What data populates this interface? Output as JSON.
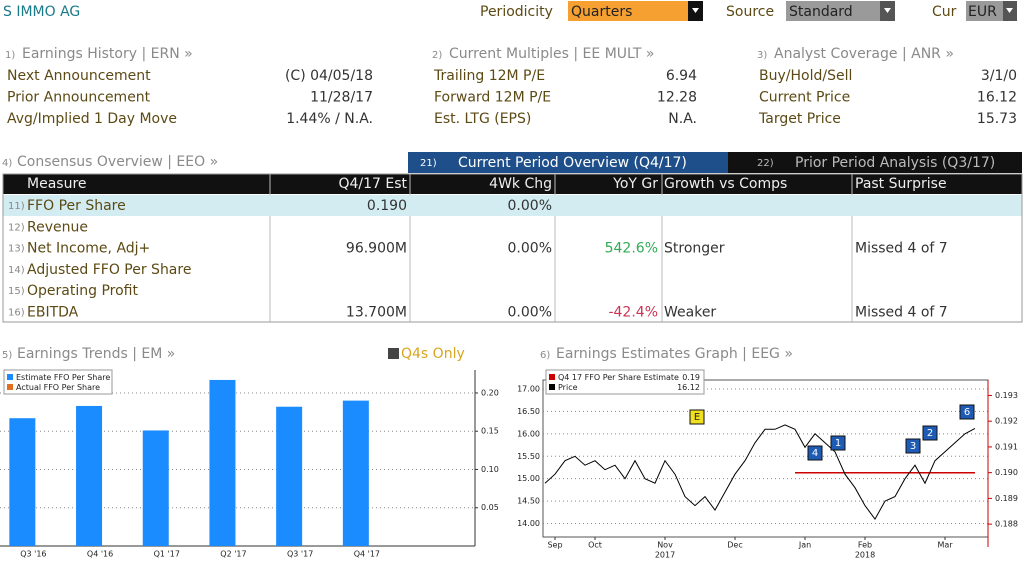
{
  "header": {
    "title": "S IMMO AG",
    "periodicity_label": "Periodicity",
    "periodicity": "Quarters",
    "source_label": "Source",
    "source": "Standard",
    "cur_label": "Cur",
    "cur": "EUR"
  },
  "panels": [
    {
      "number": "1)",
      "title": "Earnings History | ERN »",
      "rows": [
        [
          "Next Announcement",
          "(C)  04/05/18"
        ],
        [
          "Prior Announcement",
          "11/28/17"
        ],
        [
          "Avg/Implied 1 Day Move",
          "1.44% / N.A."
        ]
      ]
    },
    {
      "number": "2)",
      "title": "Current Multiples | EE MULT »",
      "rows": [
        [
          "Trailing 12M P/E",
          "6.94"
        ],
        [
          "Forward 12M P/E",
          "12.28"
        ],
        [
          "Est. LTG (EPS)",
          "N.A."
        ]
      ]
    },
    {
      "number": "3)",
      "title": "Analyst Coverage | ANR »",
      "rows": [
        [
          "Buy/Hold/Sell",
          "3/1/0"
        ],
        [
          "Current Price",
          "16.12"
        ],
        [
          "Target Price",
          "15.73"
        ]
      ]
    }
  ],
  "consensus": {
    "number": "4)",
    "title": "Consensus Overview | EEO »",
    "tabs": [
      {
        "number": "21)",
        "label": "Current Period Overview (Q4/17)"
      },
      {
        "number": "22)",
        "label": "Prior Period Analysis (Q3/17)"
      }
    ],
    "columns": [
      "Measure",
      "Q4/17 Est",
      "4Wk Chg",
      "YoY Gr",
      "Growth vs Comps",
      "Past Surprise"
    ],
    "rows": [
      [
        "11)",
        "FFO Per Share",
        "0.190",
        "0.00%",
        null,
        null,
        null
      ],
      [
        "12)",
        "Revenue",
        null,
        null,
        null,
        null,
        null
      ],
      [
        "13)",
        "Net Income, Adj+",
        "96.900M",
        "0.00%",
        "542.6%",
        "Stronger",
        "Missed 4 of 7"
      ],
      [
        "14)",
        "Adjusted FFO Per Share",
        null,
        null,
        null,
        null,
        null
      ],
      [
        "15)",
        "Operating Profit",
        null,
        null,
        null,
        null,
        null
      ],
      [
        "16)",
        "EBITDA",
        "13.700M",
        "0.00%",
        "-42.4%",
        "Weaker",
        "Missed 4 of 7"
      ]
    ]
  },
  "chart_data": [
    {
      "type": "bar",
      "panel_number": "5)",
      "title": "Earnings Trends | EM »",
      "toggle_label": "Q4s Only",
      "categories": [
        "Q3 '16",
        "Q4 '16",
        "Q1 '17",
        "Q2 '17",
        "Q3 '17",
        "Q4 '17"
      ],
      "series": [
        {
          "name": "Estimate FFO Per Share",
          "color": "#1a8cff",
          "values": [
            0.167,
            0.183,
            0.151,
            0.217,
            0.182,
            0.19
          ]
        },
        {
          "name": "Actual FFO Per Share",
          "color": "#e07020",
          "values": [
            null,
            null,
            null,
            null,
            null,
            null
          ]
        }
      ],
      "ylim": [
        0,
        0.23
      ],
      "yticks": [
        {
          "value": 0.05,
          "label": "0.05"
        },
        {
          "value": 0.1,
          "label": "0.10"
        },
        {
          "value": 0.15,
          "label": "0.15"
        },
        {
          "value": 0.2,
          "label": "0.20"
        }
      ],
      "grid": true,
      "legend": "top-left"
    },
    {
      "type": "line",
      "panel_number": "6)",
      "title": "Earnings Estimates Graph | EEG »",
      "categories": [
        null,
        "Sep",
        null,
        null,
        null,
        "Oct",
        null,
        null,
        null,
        null,
        null,
        null,
        "Nov",
        null,
        null,
        null,
        null,
        null,
        null,
        "Dec",
        null,
        null,
        null,
        null,
        null,
        null,
        "Jan",
        null,
        null,
        null,
        null,
        null,
        "Feb",
        null,
        null,
        null,
        null,
        null,
        null,
        null,
        "Mar",
        null,
        null,
        null
      ],
      "year_categories": [
        null,
        null,
        null,
        null,
        null,
        null,
        null,
        null,
        null,
        null,
        null,
        null,
        "2017",
        null,
        null,
        null,
        null,
        null,
        null,
        null,
        null,
        null,
        null,
        null,
        null,
        null,
        null,
        null,
        null,
        null,
        null,
        null,
        "2018",
        null,
        null,
        null,
        null,
        null,
        null,
        null,
        null,
        null,
        null,
        null
      ],
      "series": [
        {
          "name": "Q4 17 FFO Per Share Estimate",
          "legend_value": 0.19,
          "color": "#cc0000",
          "axis": "y2",
          "values": [
            null,
            null,
            null,
            null,
            null,
            null,
            null,
            null,
            null,
            null,
            null,
            null,
            null,
            null,
            null,
            null,
            null,
            null,
            null,
            null,
            null,
            null,
            null,
            null,
            null,
            0.19,
            0.19,
            0.19,
            0.19,
            0.19,
            0.19,
            0.19,
            0.19,
            0.19,
            0.19,
            0.19,
            0.19,
            0.19,
            0.19,
            0.19,
            0.19,
            0.19,
            0.19,
            0.19
          ]
        },
        {
          "name": "Price",
          "legend_value": 16.12,
          "color": "#000000",
          "values": [
            14.9,
            15.1,
            15.4,
            15.5,
            15.3,
            15.4,
            15.2,
            15.3,
            15.0,
            15.4,
            15.0,
            14.9,
            15.4,
            15.1,
            14.6,
            14.4,
            14.6,
            14.3,
            14.7,
            15.1,
            15.4,
            15.8,
            16.1,
            16.1,
            16.2,
            16.1,
            15.7,
            16.0,
            15.8,
            15.6,
            15.1,
            14.8,
            14.4,
            14.1,
            14.5,
            14.6,
            15.0,
            15.3,
            14.9,
            15.4,
            15.6,
            15.8,
            16.0,
            16.12
          ]
        }
      ],
      "ylim": [
        13.7,
        17.2
      ],
      "yticks": [
        {
          "value": 14,
          "label": "14.00"
        },
        {
          "value": 14.5,
          "label": "14.50"
        },
        {
          "value": 15,
          "label": "15.00"
        },
        {
          "value": 15.5,
          "label": "15.50"
        },
        {
          "value": 16,
          "label": "16.00"
        },
        {
          "value": 16.5,
          "label": "16.50"
        },
        {
          "value": 17,
          "label": "17.00"
        }
      ],
      "y2lim": [
        0.1875,
        0.1936
      ],
      "y2ticks": [
        0.188,
        0.189,
        {
          "value": 0.19,
          "label": "0.190"
        },
        0.191,
        0.192,
        0.193
      ],
      "event_markers": [
        "E",
        "4",
        "1",
        "3",
        "2",
        "6"
      ],
      "grid": true,
      "legend": "top-left"
    }
  ]
}
